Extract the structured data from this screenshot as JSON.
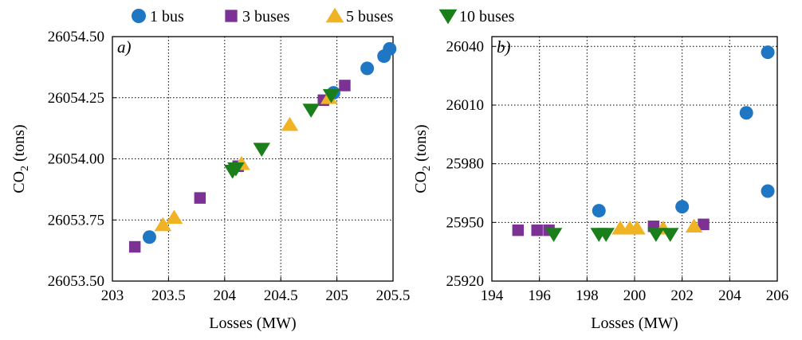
{
  "legend": {
    "placement": "top",
    "items": [
      {
        "label": "1 bus",
        "color": "#1f77c4",
        "marker": "circle"
      },
      {
        "label": "3 buses",
        "color": "#7b3294",
        "marker": "square"
      },
      {
        "label": "5 buses",
        "color": "#f0b323",
        "marker": "triangle-up"
      },
      {
        "label": "10 buses",
        "color": "#1a7f1a",
        "marker": "triangle-down"
      }
    ]
  },
  "chart_data": [
    {
      "type": "scatter",
      "panel_label": "a)",
      "xlabel": "Losses (MW)",
      "ylabel_main": "CO",
      "ylabel_sub": "2",
      "ylabel_tail": " (tons)",
      "xlim": [
        203,
        205.5
      ],
      "ylim": [
        26053.5,
        26054.5
      ],
      "xticks": [
        203,
        203.5,
        204,
        204.5,
        205,
        205.5
      ],
      "xtick_labels": [
        "203",
        "203.5",
        "204",
        "204.5",
        "205",
        "205.5"
      ],
      "yticks": [
        26053.5,
        26053.75,
        26054.0,
        26054.25,
        26054.5
      ],
      "ytick_labels": [
        "26053.50",
        "26053.75",
        "26054.00",
        "26054.25",
        "26054.50"
      ],
      "grid": true,
      "series": [
        {
          "name": "1 bus",
          "points": [
            [
              203.33,
              26053.68
            ],
            [
              204.97,
              26054.27
            ],
            [
              205.27,
              26054.37
            ],
            [
              205.42,
              26054.42
            ],
            [
              205.47,
              26054.45
            ]
          ]
        },
        {
          "name": "3 buses",
          "points": [
            [
              203.2,
              26053.64
            ],
            [
              203.78,
              26053.84
            ],
            [
              204.12,
              26053.97
            ],
            [
              204.88,
              26054.24
            ],
            [
              205.07,
              26054.3
            ]
          ]
        },
        {
          "name": "5 buses",
          "points": [
            [
              203.45,
              26053.73
            ],
            [
              203.55,
              26053.76
            ],
            [
              204.15,
              26053.98
            ],
            [
              204.58,
              26054.14
            ],
            [
              204.93,
              26054.25
            ]
          ]
        },
        {
          "name": "10 buses",
          "points": [
            [
              204.07,
              26053.95
            ],
            [
              204.1,
              26053.96
            ],
            [
              204.33,
              26054.04
            ],
            [
              204.77,
              26054.2
            ],
            [
              204.95,
              26054.26
            ]
          ]
        }
      ]
    },
    {
      "type": "scatter",
      "panel_label": "b)",
      "xlabel": "Losses (MW)",
      "ylabel_main": "CO",
      "ylabel_sub": "2",
      "ylabel_tail": " (tons)",
      "xlim": [
        194,
        206
      ],
      "ylim": [
        25920,
        26045
      ],
      "xticks": [
        194,
        196,
        198,
        200,
        202,
        204,
        206
      ],
      "xtick_labels": [
        "194",
        "196",
        "198",
        "200",
        "202",
        "204",
        "206"
      ],
      "yticks": [
        25920,
        25950,
        25980,
        26010,
        26040
      ],
      "ytick_labels": [
        "25920",
        "25950",
        "25980",
        "26010",
        "26040"
      ],
      "grid": true,
      "series": [
        {
          "name": "1 bus",
          "points": [
            [
              198.5,
              25956
            ],
            [
              202.0,
              25958
            ],
            [
              204.7,
              26006
            ],
            [
              205.6,
              25966
            ],
            [
              205.6,
              26037
            ]
          ]
        },
        {
          "name": "3 buses",
          "points": [
            [
              195.1,
              25946
            ],
            [
              195.9,
              25946
            ],
            [
              196.4,
              25946
            ],
            [
              200.8,
              25948
            ],
            [
              202.9,
              25949
            ]
          ]
        },
        {
          "name": "5 buses",
          "points": [
            [
              199.4,
              25947
            ],
            [
              199.8,
              25947
            ],
            [
              200.1,
              25947
            ],
            [
              201.2,
              25947
            ],
            [
              202.5,
              25948
            ]
          ]
        },
        {
          "name": "10 buses",
          "points": [
            [
              196.6,
              25944
            ],
            [
              198.5,
              25944
            ],
            [
              198.8,
              25944
            ],
            [
              200.9,
              25944
            ],
            [
              201.5,
              25944
            ]
          ]
        }
      ]
    }
  ]
}
